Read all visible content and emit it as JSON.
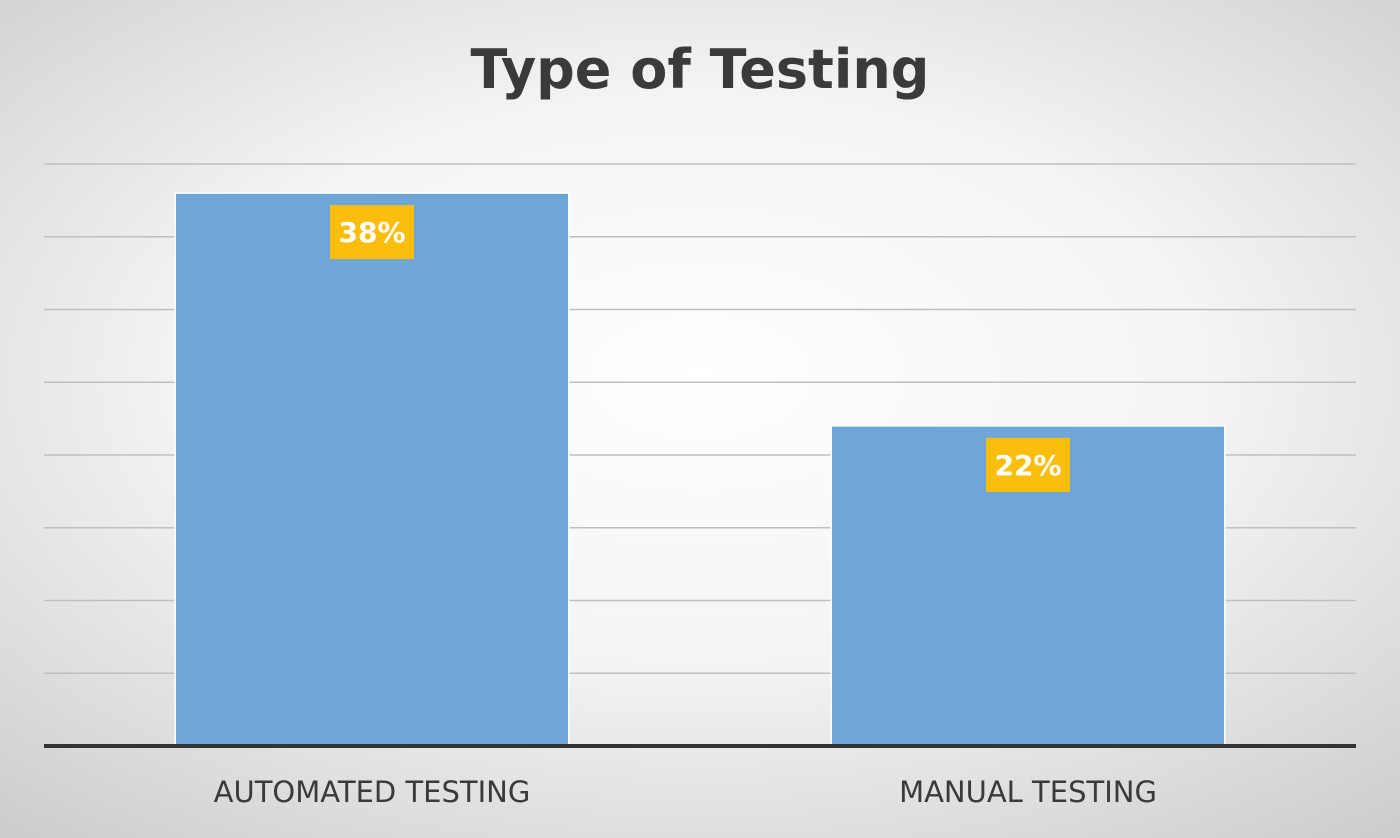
{
  "chart_data": {
    "type": "bar",
    "title": "Type of Testing",
    "categories": [
      "AUTOMATED TESTING",
      "MANUAL TESTING"
    ],
    "values": [
      38,
      22
    ],
    "data_labels": [
      "38%",
      "22%"
    ],
    "value_unit": "%",
    "ylim": [
      0,
      40
    ],
    "grid": true,
    "legend": "none",
    "colors": {
      "bar": "#6fa6d8",
      "data_label_bg": "#fbbd0e",
      "data_label_text": "#ffffff",
      "axis": "#333333",
      "grid": "#bfbfbf",
      "title": "#3a3a3a",
      "category_text": "#3a3a3a"
    }
  }
}
